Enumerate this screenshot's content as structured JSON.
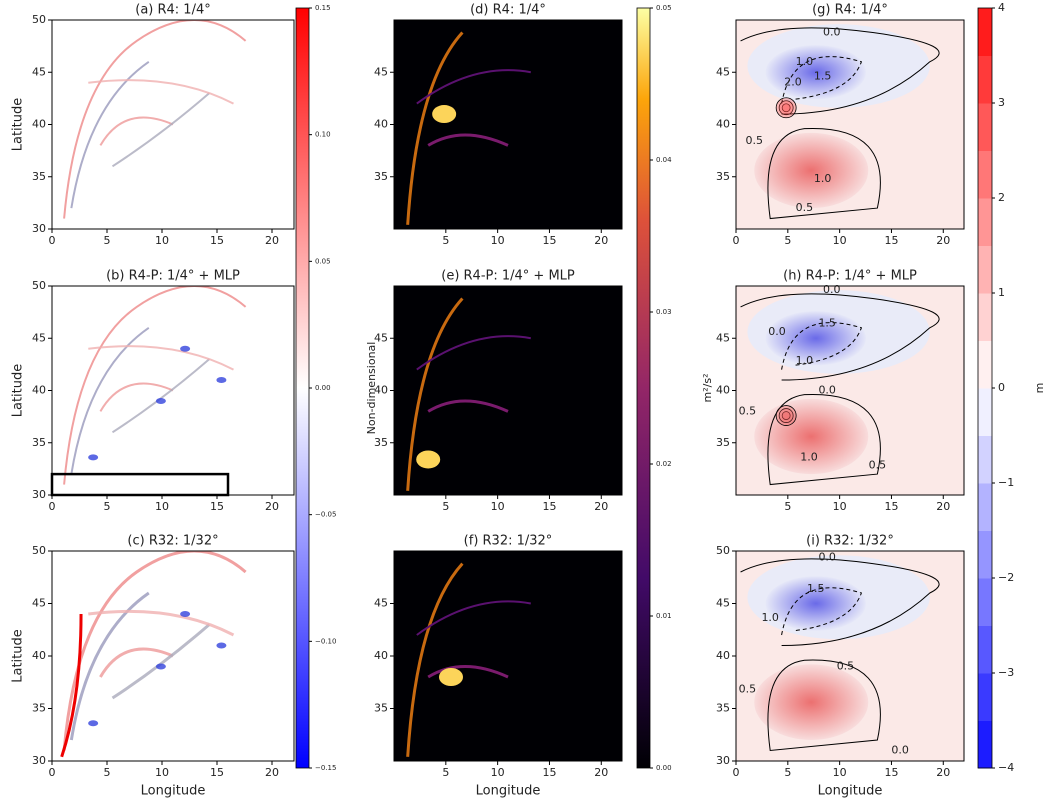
{
  "chart_data": [
    {
      "type": "field",
      "colormap": "bwr",
      "title": "(a) R4: 1/4°",
      "ylabel": "Latitude",
      "xlim": [
        0,
        22
      ],
      "ylim": [
        30,
        50
      ],
      "xticks": [
        0,
        5,
        10,
        15,
        20
      ],
      "yticks": [
        30,
        35,
        40,
        45,
        50
      ]
    },
    {
      "type": "field",
      "colormap": "bwr",
      "title": "(b) R4-P: 1/4° + MLP",
      "ylabel": "Latitude",
      "xlim": [
        0,
        22
      ],
      "ylim": [
        30,
        50
      ],
      "xticks": [
        0,
        5,
        10,
        15,
        20
      ],
      "yticks": [
        30,
        35,
        40,
        45,
        50
      ],
      "box": {
        "x": [
          0,
          16
        ],
        "y": [
          30,
          32
        ]
      }
    },
    {
      "type": "field",
      "colormap": "bwr",
      "title": "(c) R32: 1/32°",
      "ylabel": "Latitude",
      "xlabel": "Longitude",
      "xlim": [
        0,
        22
      ],
      "ylim": [
        30,
        50
      ],
      "xticks": [
        0,
        5,
        10,
        15,
        20
      ],
      "yticks": [
        30,
        35,
        40,
        45,
        50
      ]
    },
    {
      "type": "field",
      "colormap": "inferno",
      "title": "(d) R4: 1/4°",
      "xlim": [
        0,
        22
      ],
      "ylim": [
        30,
        50
      ],
      "xticks": [
        5,
        10,
        15,
        20
      ],
      "yticks": [
        35,
        40,
        45
      ]
    },
    {
      "type": "field",
      "colormap": "inferno",
      "title": "(e) R4-P: 1/4° + MLP",
      "xlim": [
        0,
        22
      ],
      "ylim": [
        30,
        50
      ],
      "xticks": [
        5,
        10,
        15,
        20
      ],
      "yticks": [
        35,
        40,
        45
      ]
    },
    {
      "type": "field",
      "colormap": "inferno",
      "title": "(f) R32: 1/32°",
      "xlabel": "Longitude",
      "xlim": [
        0,
        22
      ],
      "ylim": [
        30,
        50
      ],
      "xticks": [
        5,
        10,
        15,
        20
      ],
      "yticks": [
        35,
        40,
        45
      ]
    },
    {
      "type": "field",
      "colormap": "contour",
      "title": "(g) R4: 1/4°",
      "xlim": [
        0,
        22
      ],
      "ylim": [
        30,
        50
      ],
      "xticks": [
        0,
        5,
        10,
        15,
        20
      ],
      "yticks": [
        35,
        40,
        45
      ],
      "contour_labels": [
        "0.0",
        "1.0",
        "1.5",
        "2.0",
        "0.5",
        "1.0",
        "0.5"
      ]
    },
    {
      "type": "field",
      "colormap": "contour",
      "title": "(h) R4-P: 1/4° + MLP",
      "xlim": [
        0,
        22
      ],
      "ylim": [
        30,
        50
      ],
      "xticks": [
        5,
        10,
        15,
        20
      ],
      "yticks": [
        35,
        40,
        45
      ],
      "contour_labels": [
        "0.0",
        "0.0",
        "1.5",
        "1.0",
        "0.0",
        "1.0",
        "0.5",
        "0.5"
      ]
    },
    {
      "type": "field",
      "colormap": "contour",
      "title": "(i) R32: 1/32°",
      "xlabel": "Longitude",
      "xlim": [
        0,
        22
      ],
      "ylim": [
        30,
        50
      ],
      "xticks": [
        0,
        5,
        10,
        15,
        20
      ],
      "yticks": [
        30,
        35,
        40,
        45,
        50
      ],
      "contour_labels": [
        "0.0",
        "1.5",
        "1.0",
        "0.5",
        "0.5",
        "0.0"
      ]
    },
    {
      "type": "colorbar",
      "colormap": "bwr",
      "ylim": [
        -0.15,
        0.15
      ],
      "yticks": [
        {
          "value": -0.15,
          "label": "−0.15"
        },
        {
          "value": -0.1,
          "label": "−0.10"
        },
        {
          "value": -0.05,
          "label": "−0.05"
        },
        {
          "value": 0,
          "label": "0.00"
        },
        0.05,
        {
          "value": 0.1,
          "label": "0.10"
        },
        0.15
      ]
    },
    {
      "type": "colorbar",
      "colormap": "inferno",
      "label": "Non-dimensional",
      "ylim": [
        0,
        0.05
      ],
      "yticks": [
        {
          "value": 0,
          "label": "0.00"
        },
        0.01,
        0.02,
        0.03,
        0.04,
        0.05
      ]
    },
    {
      "type": "colorbar",
      "colormap": "contour",
      "label": "m²/s²",
      "label2": "m",
      "ylim": [
        -4,
        4
      ],
      "yticks": [
        {
          "value": -4,
          "label": "−4"
        },
        {
          "value": -3,
          "label": "−3"
        },
        {
          "value": -2,
          "label": "−2"
        },
        {
          "value": -1,
          "label": "−1"
        },
        0,
        1,
        2,
        3,
        4
      ]
    }
  ]
}
